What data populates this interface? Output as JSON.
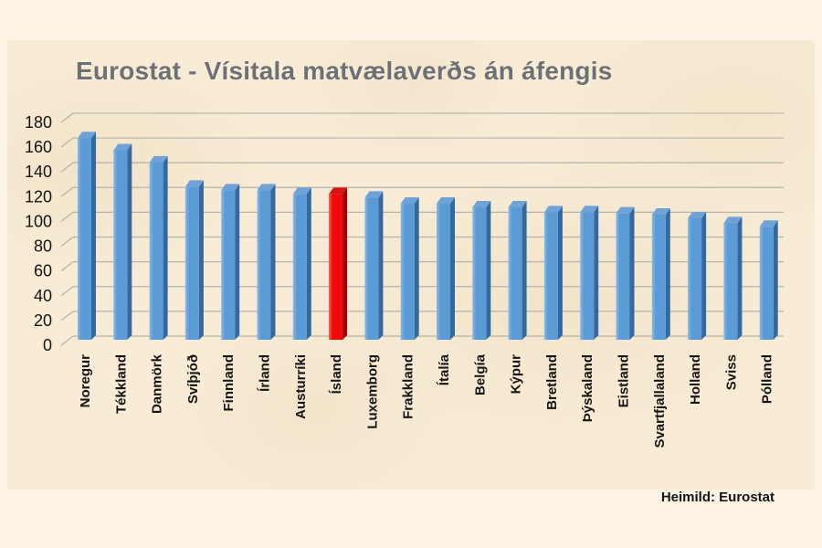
{
  "title": "Eurostat - Vísitala matvælaverðs án áfengis",
  "source": "Heimild: Eurostat",
  "colors": {
    "background": "#fdf3e3",
    "paper": "#f8ecd6",
    "title_gray": "#6f7073",
    "gridline": "#b5b2a8",
    "axis_text": "#141414",
    "bar_blue_front": "#5b9bd5",
    "bar_blue_light": "#8ab9e6",
    "bar_blue_top": "#6fa3d8",
    "bar_blue_side": "#35699e",
    "bar_red_front": "#ee0a0a",
    "bar_red_light": "#ff5a4a",
    "bar_red_top": "#d61212",
    "bar_red_side": "#9c0606"
  },
  "chart_data": {
    "type": "bar",
    "style": "3d-column",
    "title": "Eurostat - Vísitala matvælaverðs án áfengis",
    "source": "Heimild: Eurostat",
    "categories": [
      "Noregur",
      "Tékkland",
      "Danmörk",
      "Svíþjóð",
      "Finnland",
      "Írland",
      "Austurríki",
      "Ísland",
      "Luxemborg",
      "Frakkland",
      "Ítalía",
      "Belgía",
      "Kýpur",
      "Bretland",
      "Þýskaland",
      "Eistland",
      "Svartfjallaland",
      "Holland",
      "Sviss",
      "Pólland"
    ],
    "values": [
      166,
      156,
      146,
      126,
      123,
      123,
      120,
      120,
      117,
      112,
      112,
      109,
      109,
      105,
      105,
      104,
      103,
      100,
      96,
      93
    ],
    "highlight_category": "Ísland",
    "bar_color": "#5b9bd5",
    "highlight_color": "#ee0a0a",
    "xlabel": "",
    "ylabel": "",
    "ylim": [
      0,
      180
    ],
    "ytick_step": 20,
    "yticks": [
      0,
      20,
      40,
      60,
      80,
      100,
      120,
      140,
      160,
      180
    ],
    "grid": true,
    "legend": false,
    "x_label_rotation": -90
  }
}
